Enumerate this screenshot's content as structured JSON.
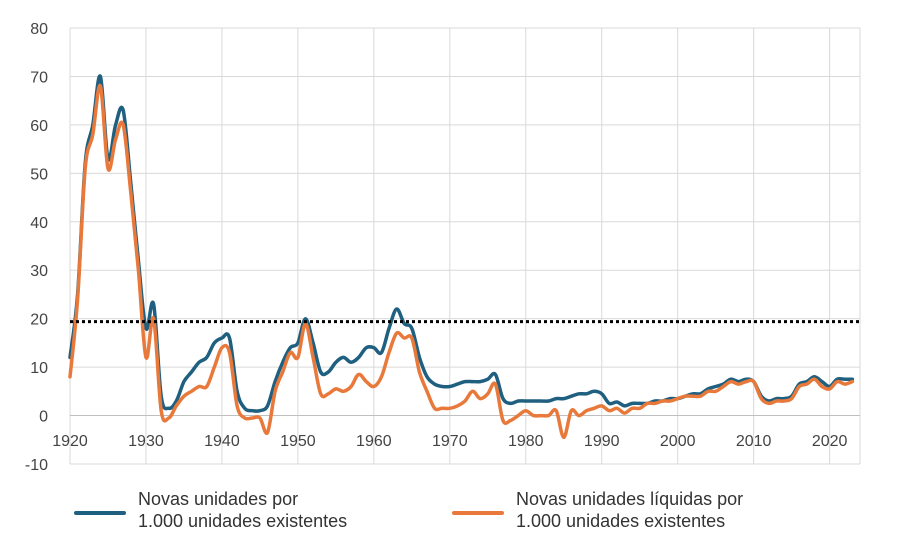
{
  "chart_data": {
    "type": "line",
    "title": "",
    "xlabel": "",
    "ylabel": "",
    "xlim": [
      1920,
      2024
    ],
    "ylim": [
      -10,
      80
    ],
    "x_ticks": [
      1920,
      1930,
      1940,
      1950,
      1960,
      1970,
      1980,
      1990,
      2000,
      2010,
      2020
    ],
    "y_ticks": [
      80,
      70,
      60,
      50,
      40,
      30,
      20,
      10,
      0,
      -10
    ],
    "grid": "both",
    "legend_position": "bottom",
    "reference_line": {
      "y": 19.4,
      "style": "dotted",
      "color": "#000000"
    },
    "series": [
      {
        "name": "Novas unidades por\n1.000 unidades existentes",
        "line1": "Novas unidades por",
        "line2": "1.000 unidades existentes",
        "color": "#1f5f7f",
        "points": [
          [
            1920,
            12
          ],
          [
            1921,
            25
          ],
          [
            1922,
            52
          ],
          [
            1923,
            60
          ],
          [
            1924,
            70
          ],
          [
            1925,
            53
          ],
          [
            1926,
            60
          ],
          [
            1927,
            63
          ],
          [
            1928,
            48
          ],
          [
            1929,
            32
          ],
          [
            1930,
            18
          ],
          [
            1931,
            23
          ],
          [
            1932,
            4
          ],
          [
            1933,
            1.5
          ],
          [
            1934,
            3
          ],
          [
            1935,
            7
          ],
          [
            1936,
            9
          ],
          [
            1937,
            11
          ],
          [
            1938,
            12
          ],
          [
            1939,
            15
          ],
          [
            1940,
            16
          ],
          [
            1941,
            16
          ],
          [
            1942,
            5
          ],
          [
            1943,
            1.5
          ],
          [
            1944,
            1
          ],
          [
            1945,
            1
          ],
          [
            1946,
            2
          ],
          [
            1947,
            7
          ],
          [
            1948,
            11
          ],
          [
            1949,
            14
          ],
          [
            1950,
            15
          ],
          [
            1951,
            20
          ],
          [
            1952,
            15
          ],
          [
            1953,
            9
          ],
          [
            1954,
            9
          ],
          [
            1955,
            11
          ],
          [
            1956,
            12
          ],
          [
            1957,
            11
          ],
          [
            1958,
            12
          ],
          [
            1959,
            14
          ],
          [
            1960,
            14
          ],
          [
            1961,
            13
          ],
          [
            1962,
            18
          ],
          [
            1963,
            22
          ],
          [
            1964,
            19
          ],
          [
            1965,
            18
          ],
          [
            1966,
            12
          ],
          [
            1967,
            8
          ],
          [
            1968,
            6.5
          ],
          [
            1969,
            6
          ],
          [
            1970,
            6
          ],
          [
            1971,
            6.5
          ],
          [
            1972,
            7
          ],
          [
            1973,
            7
          ],
          [
            1974,
            7
          ],
          [
            1975,
            7.5
          ],
          [
            1976,
            8.5
          ],
          [
            1977,
            3.5
          ],
          [
            1978,
            2.5
          ],
          [
            1979,
            3
          ],
          [
            1980,
            3
          ],
          [
            1981,
            3
          ],
          [
            1982,
            3
          ],
          [
            1983,
            3
          ],
          [
            1984,
            3.5
          ],
          [
            1985,
            3.5
          ],
          [
            1986,
            4
          ],
          [
            1987,
            4.5
          ],
          [
            1988,
            4.5
          ],
          [
            1989,
            5
          ],
          [
            1990,
            4.5
          ],
          [
            1991,
            2.5
          ],
          [
            1992,
            2.8
          ],
          [
            1993,
            2
          ],
          [
            1994,
            2.5
          ],
          [
            1995,
            2.5
          ],
          [
            1996,
            2.5
          ],
          [
            1997,
            3
          ],
          [
            1998,
            3
          ],
          [
            1999,
            3.5
          ],
          [
            2000,
            3.5
          ],
          [
            2001,
            4
          ],
          [
            2002,
            4.5
          ],
          [
            2003,
            4.5
          ],
          [
            2004,
            5.5
          ],
          [
            2005,
            6
          ],
          [
            2006,
            6.5
          ],
          [
            2007,
            7.5
          ],
          [
            2008,
            7
          ],
          [
            2009,
            7.5
          ],
          [
            2010,
            7
          ],
          [
            2011,
            4
          ],
          [
            2012,
            3
          ],
          [
            2013,
            3.5
          ],
          [
            2014,
            3.5
          ],
          [
            2015,
            4
          ],
          [
            2016,
            6.5
          ],
          [
            2017,
            7
          ],
          [
            2018,
            8
          ],
          [
            2019,
            7
          ],
          [
            2020,
            6
          ],
          [
            2021,
            7.5
          ],
          [
            2022,
            7.5
          ],
          [
            2023,
            7.5
          ]
        ]
      },
      {
        "name": "Novas unidades líquidas por\n1.000 unidades existentes",
        "line1": "Novas unidades líquidas por",
        "line2": "1.000 unidades existentes",
        "color": "#e8793a",
        "points": [
          [
            1920,
            8
          ],
          [
            1921,
            24
          ],
          [
            1922,
            51
          ],
          [
            1923,
            58
          ],
          [
            1924,
            68
          ],
          [
            1925,
            51
          ],
          [
            1926,
            57
          ],
          [
            1927,
            60
          ],
          [
            1928,
            46
          ],
          [
            1929,
            30
          ],
          [
            1930,
            12
          ],
          [
            1931,
            20
          ],
          [
            1932,
            1
          ],
          [
            1933,
            -0.5
          ],
          [
            1934,
            2
          ],
          [
            1935,
            4
          ],
          [
            1936,
            5
          ],
          [
            1937,
            6
          ],
          [
            1938,
            6
          ],
          [
            1939,
            10
          ],
          [
            1940,
            14
          ],
          [
            1941,
            13
          ],
          [
            1942,
            2
          ],
          [
            1943,
            -0.5
          ],
          [
            1944,
            -0.5
          ],
          [
            1945,
            -0.5
          ],
          [
            1946,
            -3.5
          ],
          [
            1947,
            5
          ],
          [
            1948,
            9
          ],
          [
            1949,
            13
          ],
          [
            1950,
            12
          ],
          [
            1951,
            19
          ],
          [
            1952,
            12
          ],
          [
            1953,
            4.5
          ],
          [
            1954,
            4.5
          ],
          [
            1955,
            5.5
          ],
          [
            1956,
            5
          ],
          [
            1957,
            6
          ],
          [
            1958,
            8.5
          ],
          [
            1959,
            7
          ],
          [
            1960,
            6
          ],
          [
            1961,
            8
          ],
          [
            1962,
            13
          ],
          [
            1963,
            17
          ],
          [
            1964,
            16
          ],
          [
            1965,
            16
          ],
          [
            1966,
            9
          ],
          [
            1967,
            5
          ],
          [
            1968,
            1.5
          ],
          [
            1969,
            1.5
          ],
          [
            1970,
            1.5
          ],
          [
            1971,
            2
          ],
          [
            1972,
            3
          ],
          [
            1973,
            5
          ],
          [
            1974,
            3.5
          ],
          [
            1975,
            4.5
          ],
          [
            1976,
            6.5
          ],
          [
            1977,
            -1
          ],
          [
            1978,
            -1
          ],
          [
            1979,
            0
          ],
          [
            1980,
            1
          ],
          [
            1981,
            0
          ],
          [
            1982,
            0
          ],
          [
            1983,
            0
          ],
          [
            1984,
            1
          ],
          [
            1985,
            -4.5
          ],
          [
            1986,
            1
          ],
          [
            1987,
            0
          ],
          [
            1988,
            1
          ],
          [
            1989,
            1.5
          ],
          [
            1990,
            2
          ],
          [
            1991,
            1
          ],
          [
            1992,
            1.5
          ],
          [
            1993,
            0.5
          ],
          [
            1994,
            1.5
          ],
          [
            1995,
            1.5
          ],
          [
            1996,
            2.5
          ],
          [
            1997,
            2.5
          ],
          [
            1998,
            3
          ],
          [
            1999,
            3
          ],
          [
            2000,
            3.5
          ],
          [
            2001,
            4
          ],
          [
            2002,
            4
          ],
          [
            2003,
            4
          ],
          [
            2004,
            5
          ],
          [
            2005,
            5
          ],
          [
            2006,
            6
          ],
          [
            2007,
            7
          ],
          [
            2008,
            6.5
          ],
          [
            2009,
            7
          ],
          [
            2010,
            7
          ],
          [
            2011,
            3.5
          ],
          [
            2012,
            2.5
          ],
          [
            2013,
            3
          ],
          [
            2014,
            3
          ],
          [
            2015,
            3.5
          ],
          [
            2016,
            6
          ],
          [
            2017,
            6.5
          ],
          [
            2018,
            7.5
          ],
          [
            2019,
            6
          ],
          [
            2020,
            5.5
          ],
          [
            2021,
            7
          ],
          [
            2022,
            6.5
          ],
          [
            2023,
            7
          ]
        ]
      }
    ]
  }
}
